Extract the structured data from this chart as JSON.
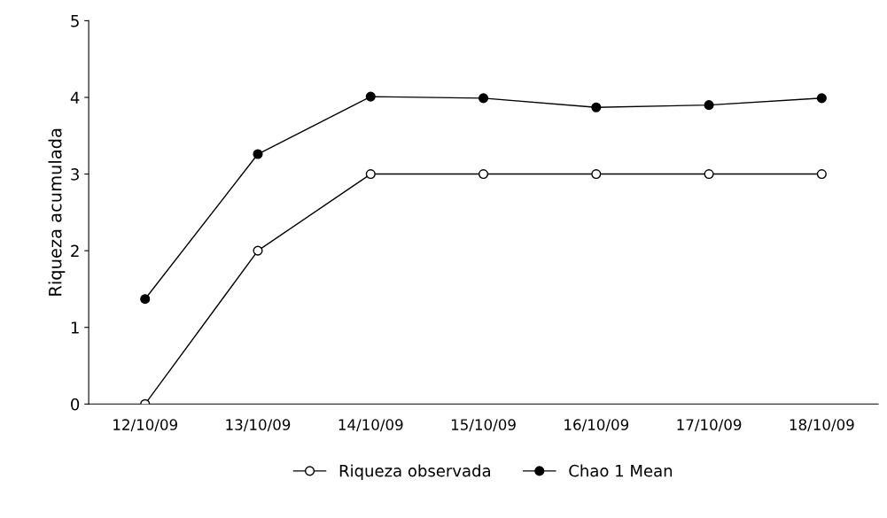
{
  "chart_data": {
    "type": "line",
    "ylabel": "Riqueza acumulada",
    "categories": [
      "12/10/09",
      "13/10/09",
      "14/10/09",
      "15/10/09",
      "16/10/09",
      "17/10/09",
      "18/10/09"
    ],
    "series": [
      {
        "name": "Riqueza observada",
        "color": "#000000",
        "colors": [
          "#ffffff",
          "#ffffff",
          "#ffffff",
          "#ffffff",
          "#ffffff",
          "#ffffff",
          "#ffffff"
        ],
        "values": [
          0,
          2,
          3,
          3,
          3,
          3,
          3
        ]
      },
      {
        "name": "Chao 1 Mean",
        "color": "#000000",
        "colors": [
          "#000000",
          "#000000",
          "#000000",
          "#000000",
          "#000000",
          "#000000",
          "#000000"
        ],
        "values": [
          1.37,
          3.26,
          4.01,
          3.99,
          3.87,
          3.9,
          3.99
        ]
      }
    ],
    "ylim": [
      0,
      5
    ],
    "yticks": [
      0,
      1,
      2,
      3,
      4,
      5
    ],
    "grid": false,
    "legend": "bottom",
    "marker": "circle",
    "line_style": "solid"
  }
}
